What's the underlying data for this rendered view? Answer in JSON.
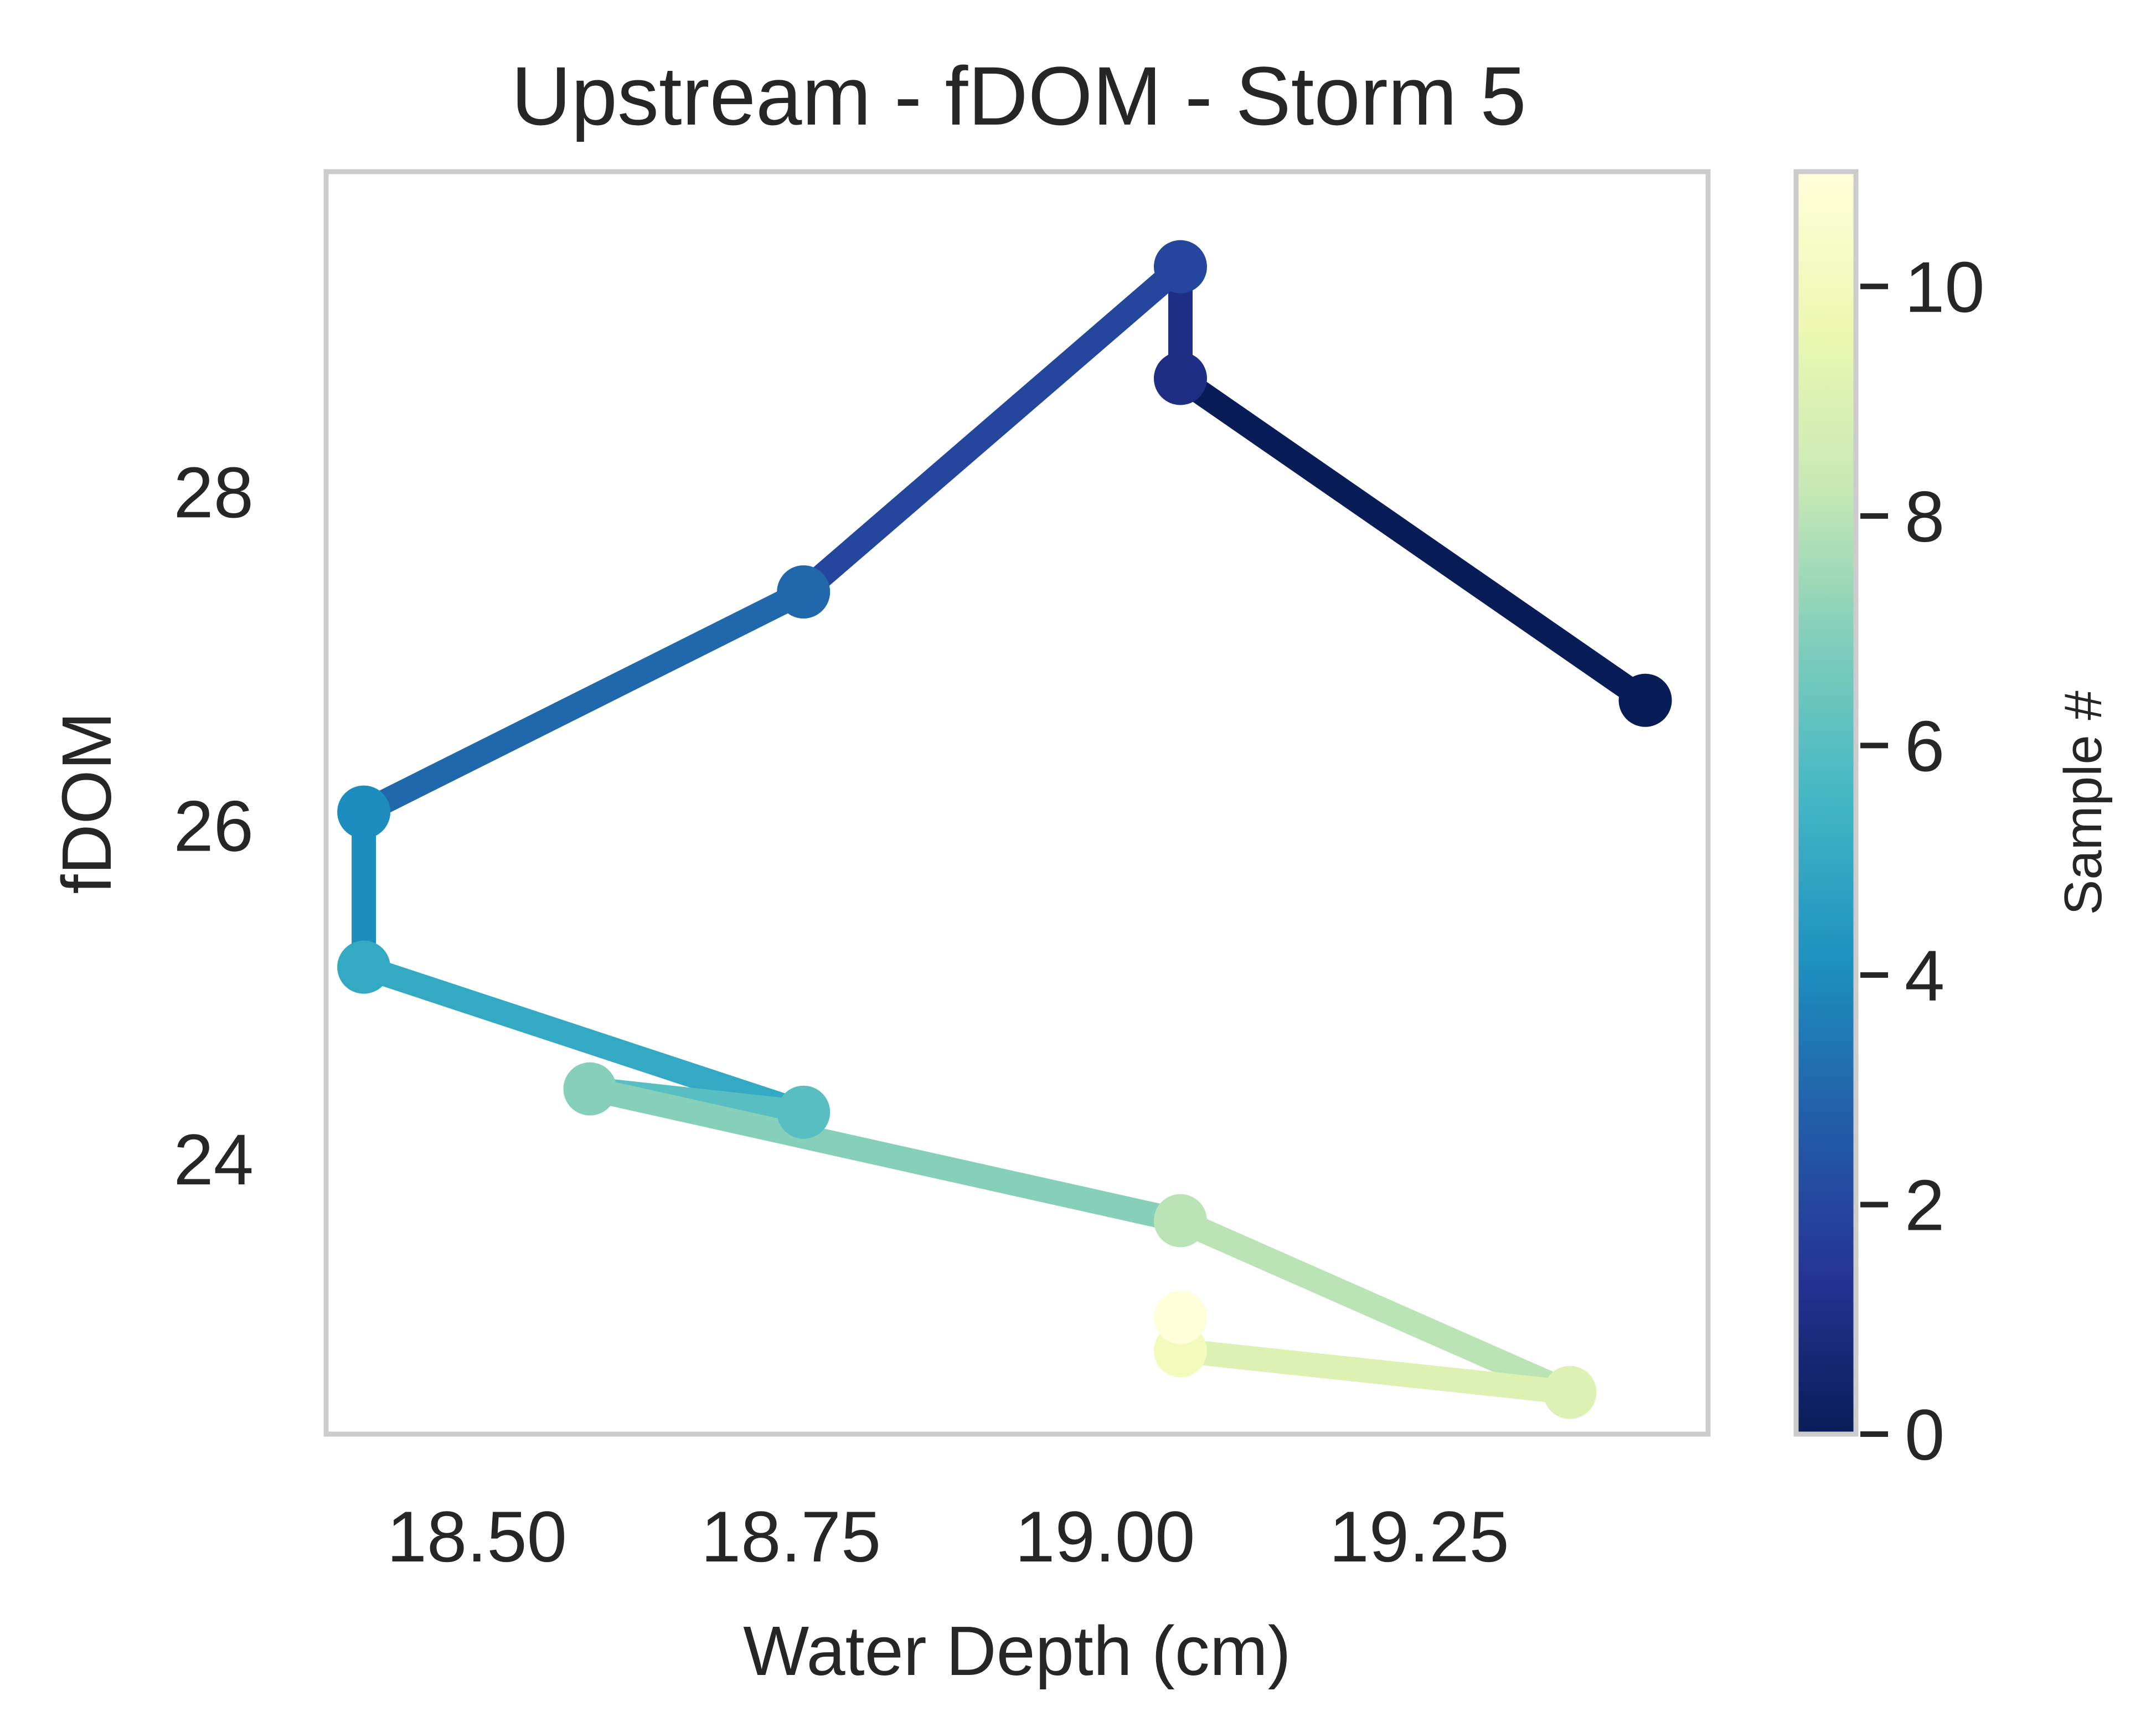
{
  "chart_data": {
    "type": "line",
    "title": "Upstream - fDOM - Storm 5",
    "xlabel": "Water Depth (cm)",
    "ylabel": "fDOM",
    "xlim": [
      18.38,
      19.48
    ],
    "ylim": [
      22.35,
      29.92
    ],
    "x_ticks": [
      18.5,
      18.75,
      19.0,
      19.25
    ],
    "x_tick_labels": [
      "18.50",
      "18.75",
      "19.00",
      "19.25"
    ],
    "y_ticks": [
      24,
      26,
      28
    ],
    "y_tick_labels": [
      "24",
      "26",
      "28"
    ],
    "grid": false,
    "points": [
      {
        "sample": 0,
        "x": 19.43,
        "y": 26.75
      },
      {
        "sample": 1,
        "x": 19.06,
        "y": 28.68
      },
      {
        "sample": 2,
        "x": 19.06,
        "y": 29.35
      },
      {
        "sample": 3,
        "x": 18.76,
        "y": 27.4
      },
      {
        "sample": 4,
        "x": 18.41,
        "y": 26.08
      },
      {
        "sample": 5,
        "x": 18.41,
        "y": 25.15
      },
      {
        "sample": 6,
        "x": 18.76,
        "y": 24.28
      },
      {
        "sample": 7,
        "x": 18.59,
        "y": 24.42
      },
      {
        "sample": 8,
        "x": 19.06,
        "y": 23.63
      },
      {
        "sample": 9,
        "x": 19.37,
        "y": 22.6
      },
      {
        "sample": 10,
        "x": 19.06,
        "y": 22.85
      },
      {
        "sample": 11,
        "x": 19.06,
        "y": 23.05
      }
    ],
    "colorbar": {
      "label": "Sample #",
      "range": [
        0,
        11
      ],
      "ticks": [
        0,
        2,
        4,
        6,
        8,
        10
      ],
      "tick_labels": [
        "0",
        "2",
        "4",
        "6",
        "8",
        "10"
      ],
      "colormap": "YlGnBu_r"
    }
  },
  "colors": {
    "frame": "#cccccc",
    "text": "#262626",
    "colormap_stops": [
      "#081d58",
      "#253494",
      "#225ea8",
      "#1d91c0",
      "#41b6c4",
      "#7fcdbb",
      "#c7e9b4",
      "#edf8b1",
      "#ffffd9"
    ]
  }
}
